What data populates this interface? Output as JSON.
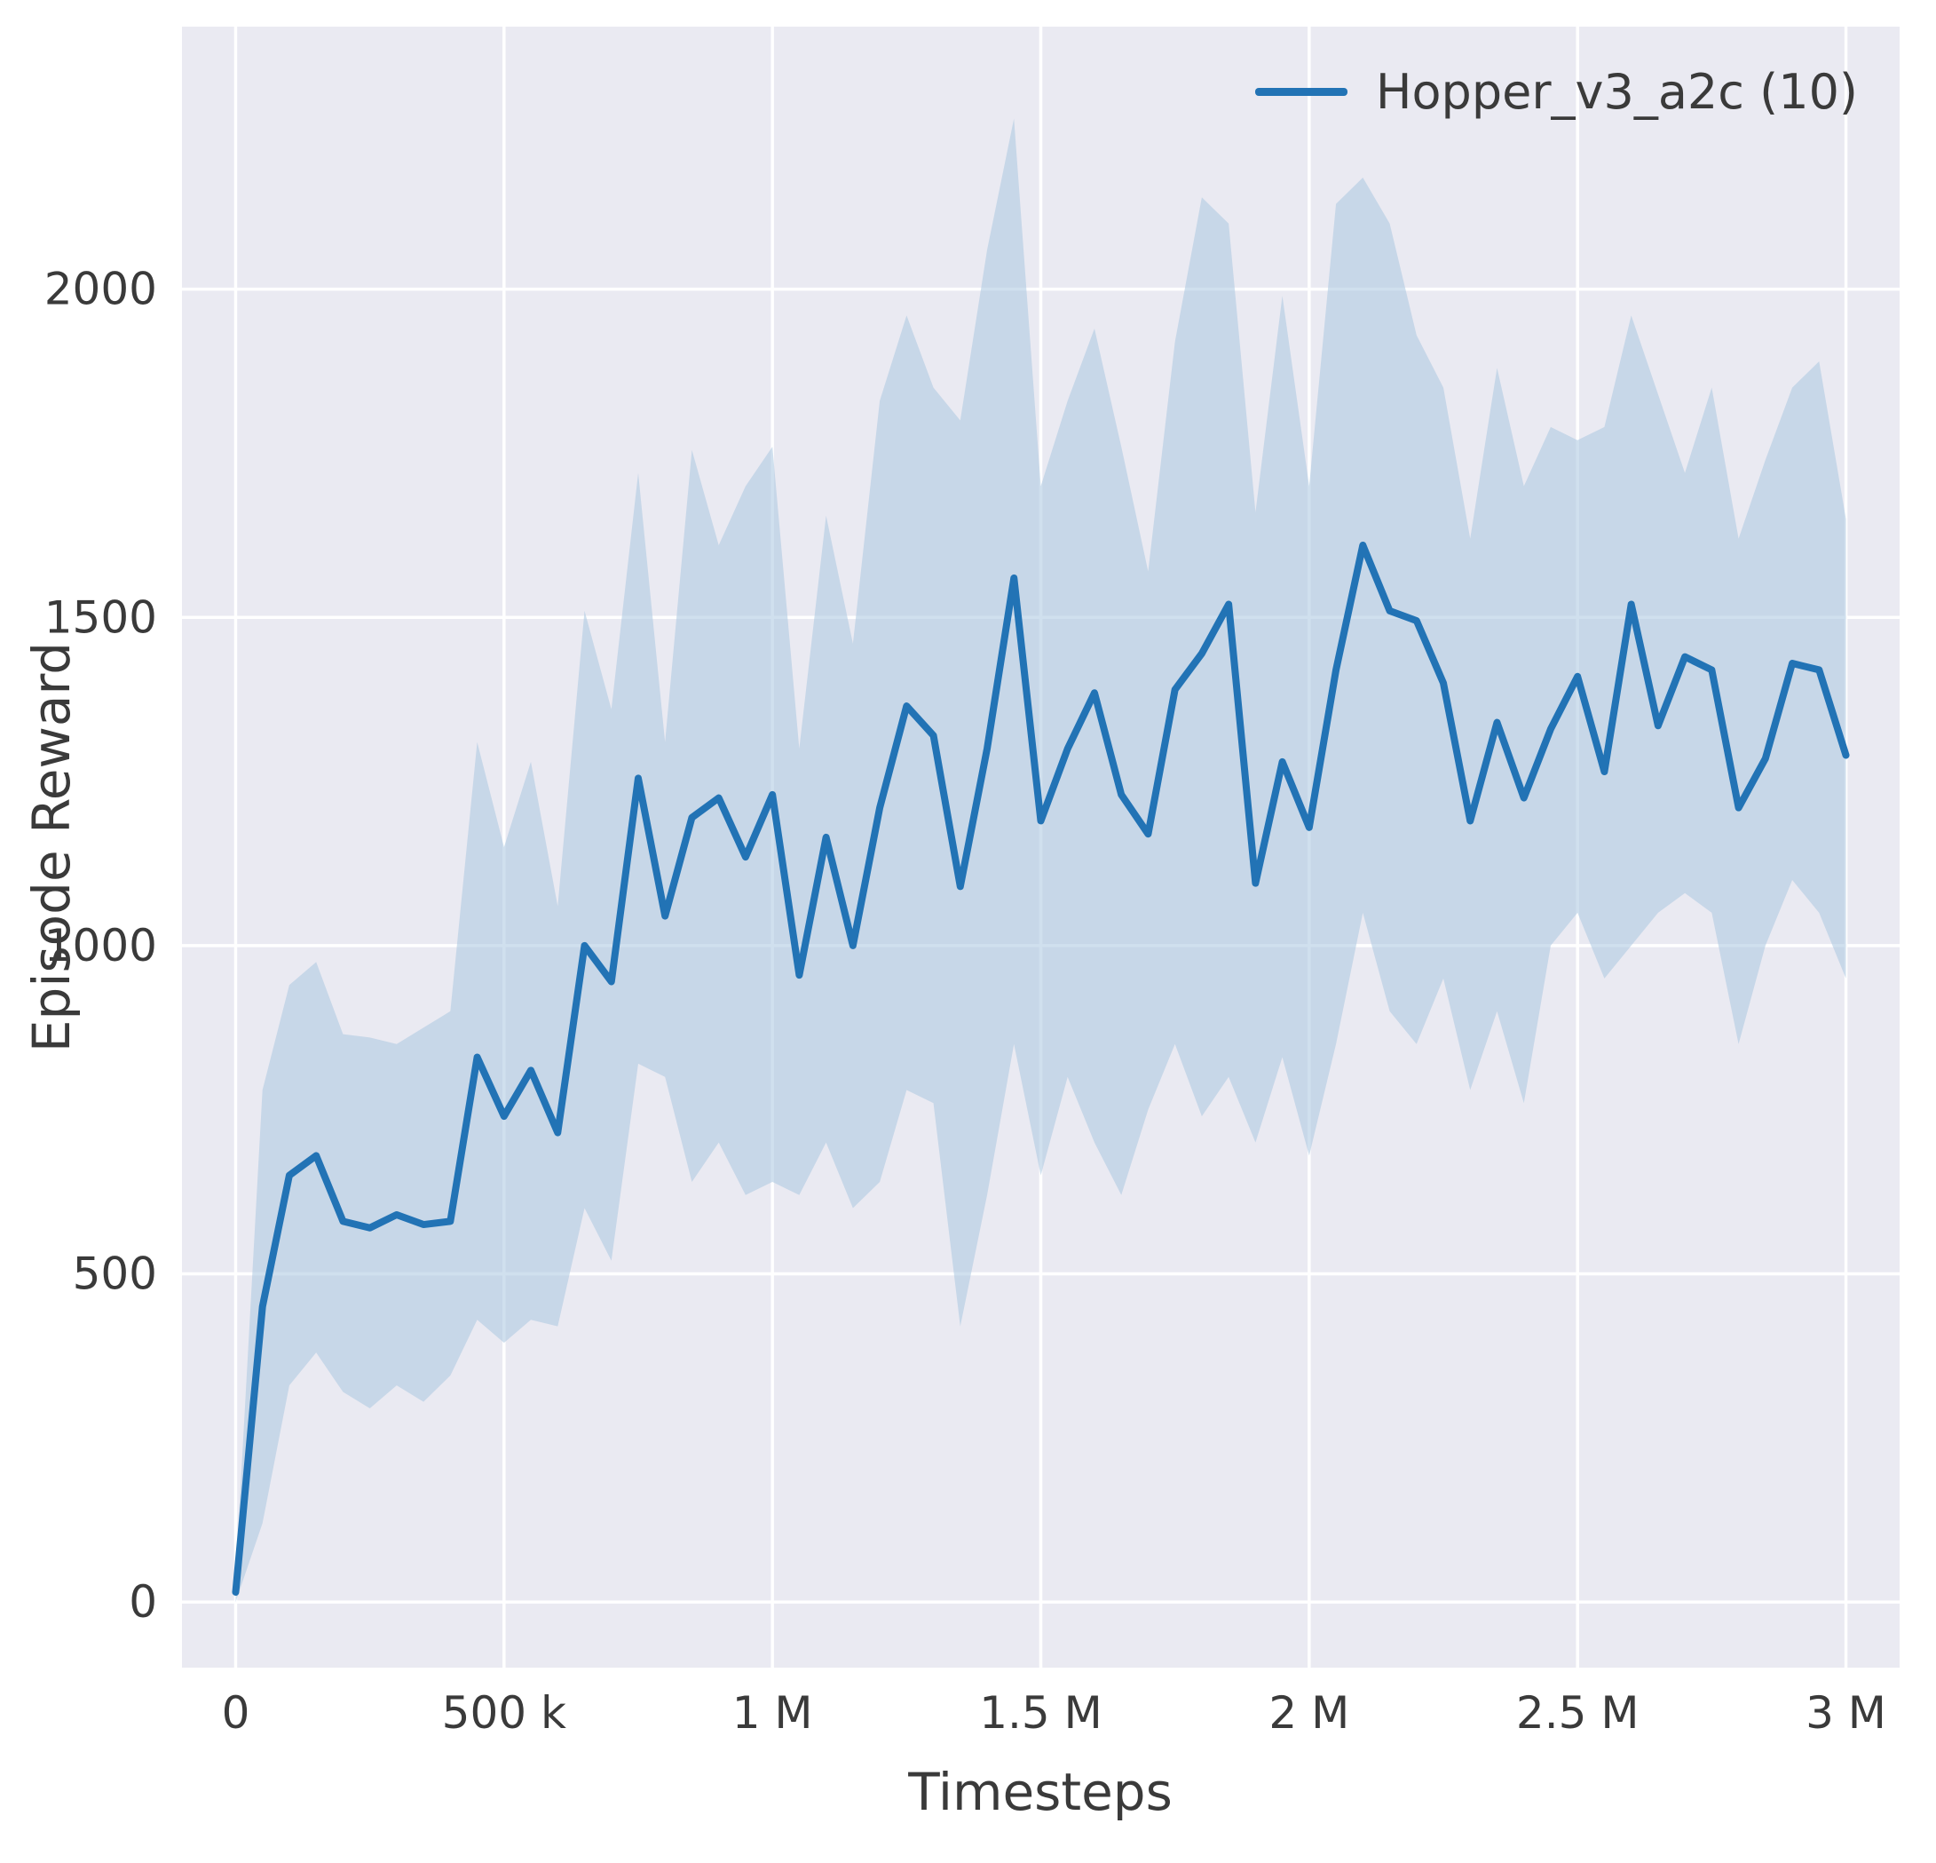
{
  "figure": {
    "background": "#ffffff",
    "plot_background": "#eaeaf2",
    "grid_color": "#ffffff"
  },
  "chart_data": {
    "type": "line",
    "title": "",
    "xlabel": "Timesteps",
    "ylabel": "Episode Reward",
    "grid": true,
    "legend_position": "upper right",
    "xlim": [
      -100000,
      3100000
    ],
    "ylim": [
      -100,
      2400
    ],
    "x_ticks": [
      {
        "value": 0,
        "label": "0"
      },
      {
        "value": 500000,
        "label": "500 k"
      },
      {
        "value": 1000000,
        "label": "1 M"
      },
      {
        "value": 1500000,
        "label": "1.5 M"
      },
      {
        "value": 2000000,
        "label": "2 M"
      },
      {
        "value": 2500000,
        "label": "2.5 M"
      },
      {
        "value": 3000000,
        "label": "3 M"
      }
    ],
    "y_ticks": [
      {
        "value": 0,
        "label": "0"
      },
      {
        "value": 500,
        "label": "500"
      },
      {
        "value": 1000,
        "label": "1000"
      },
      {
        "value": 1500,
        "label": "1500"
      },
      {
        "value": 2000,
        "label": "2000"
      }
    ],
    "series": [
      {
        "name": "Hopper_v3_a2c (10)",
        "color": "#2273b5",
        "band_color": "#a9c7e0",
        "band_opacity": 0.55,
        "x": [
          0,
          50000,
          100000,
          150000,
          200000,
          250000,
          300000,
          350000,
          400000,
          450000,
          500000,
          550000,
          600000,
          650000,
          700000,
          750000,
          800000,
          850000,
          900000,
          950000,
          1000000,
          1050000,
          1100000,
          1150000,
          1200000,
          1250000,
          1300000,
          1350000,
          1400000,
          1450000,
          1500000,
          1550000,
          1600000,
          1650000,
          1700000,
          1750000,
          1800000,
          1850000,
          1900000,
          1950000,
          2000000,
          2050000,
          2100000,
          2150000,
          2200000,
          2250000,
          2300000,
          2350000,
          2400000,
          2450000,
          2500000,
          2550000,
          2600000,
          2650000,
          2700000,
          2750000,
          2800000,
          2850000,
          2900000,
          2950000,
          3000000
        ],
        "mean": [
          15,
          450,
          650,
          680,
          580,
          570,
          590,
          575,
          580,
          830,
          740,
          810,
          715,
          1000,
          945,
          1255,
          1045,
          1195,
          1225,
          1135,
          1230,
          955,
          1165,
          1000,
          1210,
          1365,
          1320,
          1090,
          1300,
          1560,
          1190,
          1300,
          1385,
          1230,
          1170,
          1390,
          1445,
          1520,
          1095,
          1280,
          1180,
          1420,
          1610,
          1510,
          1495,
          1400,
          1190,
          1340,
          1225,
          1330,
          1410,
          1265,
          1520,
          1335,
          1440,
          1420,
          1210,
          1285,
          1430,
          1420,
          1290
        ],
        "band_lower": [
          0,
          120,
          330,
          380,
          320,
          295,
          330,
          305,
          345,
          430,
          395,
          430,
          420,
          600,
          520,
          820,
          800,
          640,
          700,
          620,
          640,
          620,
          700,
          600,
          640,
          780,
          760,
          420,
          620,
          850,
          650,
          800,
          700,
          620,
          750,
          850,
          740,
          800,
          700,
          830,
          680,
          850,
          1050,
          900,
          850,
          950,
          780,
          900,
          760,
          1000,
          1050,
          950,
          1000,
          1050,
          1080,
          1050,
          850,
          1000,
          1100,
          1050,
          950
        ],
        "band_upper": [
          40,
          780,
          940,
          975,
          865,
          860,
          850,
          875,
          900,
          1310,
          1150,
          1280,
          1060,
          1510,
          1360,
          1720,
          1310,
          1755,
          1610,
          1700,
          1760,
          1300,
          1655,
          1460,
          1830,
          1960,
          1850,
          1800,
          2060,
          2260,
          1700,
          1830,
          1940,
          1760,
          1570,
          1920,
          2140,
          2100,
          1660,
          1990,
          1700,
          2130,
          2170,
          2100,
          1930,
          1850,
          1620,
          1880,
          1700,
          1790,
          1770,
          1790,
          1960,
          1840,
          1720,
          1850,
          1620,
          1740,
          1850,
          1890,
          1650
        ]
      }
    ]
  }
}
